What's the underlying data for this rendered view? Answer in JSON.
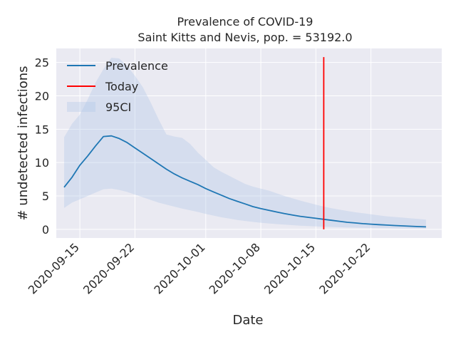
{
  "chart_data": {
    "type": "line",
    "title": "Prevalence of COVID-19",
    "subtitle": "Saint Kitts and Nevis, pop. = 53192.0",
    "xlabel": "Date",
    "ylabel": "# undetected infections",
    "xlim": [
      "2020-09-12",
      "2020-10-31"
    ],
    "ylim": [
      -1.3,
      27.1
    ],
    "grid": true,
    "legend_position": "top-left",
    "x_ticks": [
      "2020-09-15",
      "2020-09-22",
      "2020-10-01",
      "2020-10-08",
      "2020-10-15",
      "2020-10-22"
    ],
    "y_ticks": [
      0,
      5,
      10,
      15,
      20,
      25
    ],
    "x": [
      "2020-09-13",
      "2020-09-14",
      "2020-09-15",
      "2020-09-16",
      "2020-09-17",
      "2020-09-18",
      "2020-09-19",
      "2020-09-20",
      "2020-09-21",
      "2020-09-22",
      "2020-09-23",
      "2020-09-24",
      "2020-09-25",
      "2020-09-26",
      "2020-09-27",
      "2020-09-28",
      "2020-09-29",
      "2020-09-30",
      "2020-10-01",
      "2020-10-02",
      "2020-10-03",
      "2020-10-04",
      "2020-10-05",
      "2020-10-06",
      "2020-10-07",
      "2020-10-08",
      "2020-10-09",
      "2020-10-10",
      "2020-10-11",
      "2020-10-12",
      "2020-10-13",
      "2020-10-14",
      "2020-10-15",
      "2020-10-16",
      "2020-10-17",
      "2020-10-18",
      "2020-10-19",
      "2020-10-20",
      "2020-10-21",
      "2020-10-22",
      "2020-10-23",
      "2020-10-24",
      "2020-10-25",
      "2020-10-26",
      "2020-10-27",
      "2020-10-28",
      "2020-10-29"
    ],
    "series": [
      {
        "name": "Prevalence",
        "color": "#1f77b4",
        "values": [
          6.3,
          7.8,
          9.6,
          11.0,
          12.5,
          13.9,
          14.0,
          13.6,
          13.0,
          12.2,
          11.4,
          10.6,
          9.8,
          9.0,
          8.3,
          7.7,
          7.2,
          6.7,
          6.1,
          5.6,
          5.1,
          4.6,
          4.2,
          3.8,
          3.4,
          3.1,
          2.85,
          2.6,
          2.35,
          2.15,
          1.95,
          1.8,
          1.65,
          1.5,
          1.35,
          1.2,
          1.05,
          0.95,
          0.85,
          0.77,
          0.7,
          0.63,
          0.57,
          0.51,
          0.46,
          0.41,
          0.37
        ]
      },
      {
        "name": "95CI",
        "color": "#aec7e8",
        "lower": [
          3.2,
          4.0,
          4.5,
          5.0,
          5.5,
          6.0,
          6.1,
          5.9,
          5.6,
          5.2,
          4.8,
          4.4,
          4.0,
          3.7,
          3.4,
          3.1,
          2.85,
          2.6,
          2.3,
          2.05,
          1.8,
          1.6,
          1.4,
          1.25,
          1.1,
          0.98,
          0.88,
          0.78,
          0.7,
          0.62,
          0.55,
          0.49,
          0.44,
          0.39,
          0.35,
          0.31,
          0.28,
          0.25,
          0.22,
          0.2,
          0.18,
          0.16,
          0.14,
          0.12,
          0.11,
          0.1,
          0.09
        ],
        "upper": [
          13.8,
          15.8,
          17.2,
          19.5,
          22.0,
          24.0,
          25.7,
          25.6,
          24.5,
          23.0,
          21.3,
          19.0,
          16.5,
          14.2,
          13.9,
          13.7,
          12.8,
          11.5,
          10.4,
          9.3,
          8.6,
          8.0,
          7.4,
          6.8,
          6.4,
          6.1,
          5.8,
          5.4,
          5.0,
          4.65,
          4.3,
          4.0,
          3.7,
          3.4,
          3.15,
          2.95,
          2.75,
          2.55,
          2.4,
          2.25,
          2.1,
          1.95,
          1.85,
          1.75,
          1.65,
          1.55,
          1.45
        ]
      },
      {
        "name": "Today",
        "color": "#ff0000",
        "type": "vline",
        "x": "2020-10-16",
        "y_range": [
          0,
          25.8
        ]
      }
    ]
  }
}
